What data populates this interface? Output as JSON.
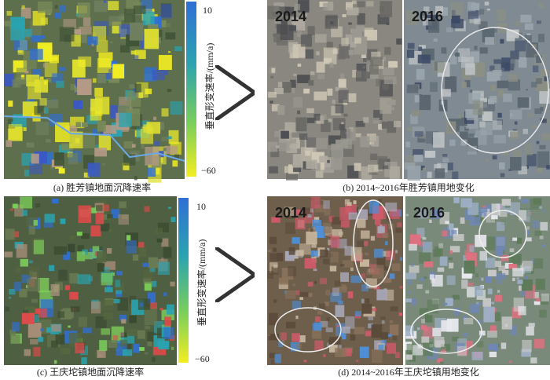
{
  "panels": [
    {
      "caption": "(a) 胜芳镇地面沉降速率",
      "colorbar": {
        "top": "10",
        "bottom": "−60",
        "label": "垂直形变速率/(mm/a)"
      }
    },
    {
      "caption": "(b) 2014~2016年胜芳镇用地变化",
      "years": [
        "2014",
        "2016"
      ]
    },
    {
      "caption": "(c) 王庆坨镇地面沉降速率",
      "colorbar": {
        "top": "10",
        "bottom": "−60",
        "label": "垂直形变速率/(mm/a)"
      }
    },
    {
      "caption": "(d) 2014~2016年王庆坨镇用地变化",
      "years": [
        "2014",
        "2016"
      ]
    }
  ]
}
